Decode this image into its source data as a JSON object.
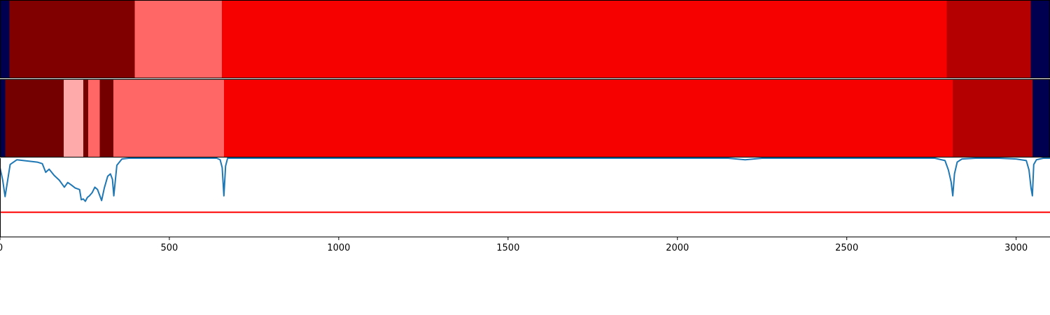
{
  "chart_data": {
    "type": "heatmap",
    "title": "",
    "xlabel": "",
    "ylabel": "",
    "xlim": [
      0,
      3100
    ],
    "x_ticks": [
      0,
      500,
      1000,
      1500,
      2000,
      2500,
      3000
    ],
    "x_tick_labels": [
      "0",
      "500",
      "1000",
      "1500",
      "2000",
      "2500",
      "3000"
    ],
    "grid": false,
    "legend": "none",
    "band_rows": [
      {
        "segments": [
          {
            "start": 0,
            "end": 28,
            "color": "#000050"
          },
          {
            "start": 28,
            "end": 398,
            "color": "#800000"
          },
          {
            "start": 398,
            "end": 655,
            "color": "#ff6666"
          },
          {
            "start": 655,
            "end": 2795,
            "color": "#f70000"
          },
          {
            "start": 2795,
            "end": 3043,
            "color": "#b40000"
          },
          {
            "start": 3043,
            "end": 3100,
            "color": "#000050"
          }
        ]
      },
      {
        "segments": [
          {
            "start": 0,
            "end": 15,
            "color": "#000050"
          },
          {
            "start": 15,
            "end": 188,
            "color": "#750000"
          },
          {
            "start": 188,
            "end": 246,
            "color": "#ffaaaa"
          },
          {
            "start": 246,
            "end": 260,
            "color": "#750000"
          },
          {
            "start": 260,
            "end": 294,
            "color": "#ff6666"
          },
          {
            "start": 294,
            "end": 335,
            "color": "#750000"
          },
          {
            "start": 335,
            "end": 661,
            "color": "#ff6666"
          },
          {
            "start": 661,
            "end": 2813,
            "color": "#f70000"
          },
          {
            "start": 2813,
            "end": 3048,
            "color": "#b40000"
          },
          {
            "start": 3048,
            "end": 3100,
            "color": "#000050"
          }
        ]
      }
    ],
    "series": [
      {
        "type": "line",
        "color": "#1f77b4",
        "ylim": [
          0,
          1
        ],
        "x": [
          0,
          8,
          15,
          30,
          50,
          70,
          90,
          110,
          125,
          135,
          145,
          160,
          175,
          185,
          190,
          200,
          210,
          222,
          235,
          240,
          246,
          252,
          258,
          264,
          272,
          280,
          288,
          294,
          300,
          308,
          318,
          326,
          332,
          336,
          345,
          360,
          380,
          420,
          500,
          600,
          640,
          650,
          656,
          661,
          666,
          672,
          690,
          800,
          1000,
          1500,
          2000,
          2150,
          2200,
          2250,
          2400,
          2600,
          2760,
          2790,
          2800,
          2808,
          2813,
          2818,
          2826,
          2840,
          2880,
          2950,
          3000,
          3030,
          3038,
          3044,
          3048,
          3052,
          3060,
          3080,
          3100
        ],
        "values": [
          0.88,
          0.72,
          0.51,
          0.92,
          0.98,
          0.97,
          0.96,
          0.95,
          0.93,
          0.82,
          0.86,
          0.78,
          0.72,
          0.66,
          0.63,
          0.69,
          0.66,
          0.62,
          0.6,
          0.47,
          0.48,
          0.45,
          0.5,
          0.52,
          0.56,
          0.63,
          0.6,
          0.53,
          0.46,
          0.62,
          0.77,
          0.8,
          0.73,
          0.52,
          0.91,
          0.99,
          1.0,
          1.0,
          1.0,
          1.0,
          1.0,
          0.98,
          0.88,
          0.52,
          0.9,
          1.0,
          1.0,
          1.0,
          1.0,
          1.0,
          1.0,
          1.0,
          0.98,
          1.0,
          1.0,
          1.0,
          1.0,
          0.97,
          0.85,
          0.7,
          0.52,
          0.8,
          0.95,
          0.99,
          1.0,
          1.0,
          0.99,
          0.97,
          0.85,
          0.62,
          0.52,
          0.92,
          0.98,
          1.0,
          1.0
        ]
      },
      {
        "type": "hline",
        "color": "#ff0000",
        "y": 0.31
      }
    ]
  }
}
